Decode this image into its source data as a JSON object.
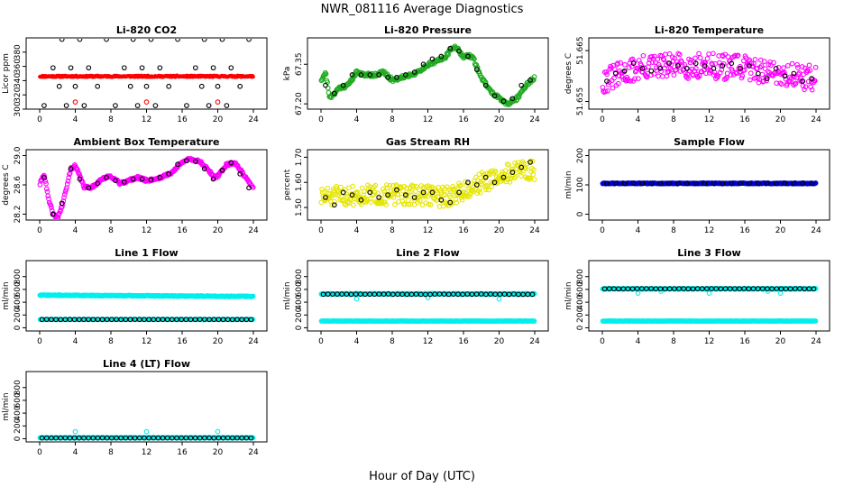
{
  "figure": {
    "title": "NWR_081116  Average Diagnostics",
    "xlabel": "Hour of Day (UTC)"
  },
  "chart_data": [
    {
      "id": "p1",
      "type": "scatter",
      "title": "Li-820 CO2",
      "ylabel": "Licor ppm",
      "xlim": [
        0,
        24
      ],
      "xticks": [
        0,
        4,
        8,
        12,
        16,
        20,
        24
      ],
      "ylim": [
        300,
        400
      ],
      "yticks": [
        300,
        320,
        340,
        360,
        380
      ],
      "ytick_rotate": true,
      "series": [
        {
          "name": "CO2 (continuous)",
          "color": "#ff0000",
          "marker": "dot",
          "gen": "linear",
          "from": 346,
          "to": 346,
          "n": 360,
          "noise": 1,
          "seed": 11
        },
        {
          "name": "Standards (reference)",
          "color": "#ff0000",
          "marker": "circle",
          "x": [
            4.0,
            12.0,
            20.0
          ],
          "y": [
            310,
            310,
            310
          ]
        },
        {
          "name": "Standards (averaged)",
          "color": "#000000",
          "marker": "circle",
          "x": [
            0.5,
            1.5,
            2.2,
            2.5,
            3.0,
            3.5,
            4.0,
            4.5,
            5.0,
            5.5,
            6.5,
            7.5,
            8.5,
            9.5,
            10.2,
            10.5,
            11.0,
            11.5,
            12.0,
            12.5,
            13.0,
            13.5,
            14.5,
            15.5,
            16.5,
            17.5,
            18.2,
            18.5,
            19.0,
            19.5,
            20.0,
            20.5,
            21.0,
            21.5,
            22.5,
            23.5
          ],
          "y": [
            305,
            358,
            332,
            398,
            305,
            358,
            332,
            398,
            305,
            358,
            332,
            398,
            305,
            358,
            332,
            398,
            305,
            358,
            332,
            398,
            305,
            358,
            332,
            398,
            305,
            358,
            332,
            398,
            305,
            358,
            332,
            398,
            305,
            358,
            332,
            398
          ]
        }
      ]
    },
    {
      "id": "p2",
      "type": "scatter",
      "title": "Li-820 Pressure",
      "ylabel": "kPa",
      "xlim": [
        0,
        24
      ],
      "xticks": [
        0,
        4,
        8,
        12,
        16,
        20,
        24
      ],
      "ylim": [
        67.18,
        67.45
      ],
      "yticks": [
        67.2,
        67.35
      ],
      "ytick_labels": [
        "67.20",
        "67.35"
      ],
      "ytick_rotate": true,
      "series": [
        {
          "name": "Pressure",
          "color": "#22aa22",
          "marker": "circle",
          "gen": "curve",
          "cx": [
            0,
            0.5,
            1,
            2,
            3,
            4,
            5,
            6,
            7,
            8,
            9,
            10,
            11,
            12,
            13,
            14,
            15,
            16,
            17,
            18,
            19,
            20,
            21,
            22,
            23,
            24
          ],
          "cy": [
            67.29,
            67.32,
            67.22,
            67.26,
            67.27,
            67.32,
            67.31,
            67.31,
            67.32,
            67.29,
            67.3,
            67.31,
            67.32,
            67.35,
            67.36,
            67.38,
            67.42,
            67.38,
            67.38,
            67.3,
            67.25,
            67.22,
            67.2,
            67.22,
            67.27,
            67.3
          ],
          "n": 320,
          "noise": 0.007,
          "seed": 21
        },
        {
          "name": "Pressure (hourly)",
          "color": "#000000",
          "marker": "circle",
          "x": [
            0.5,
            1.5,
            2.5,
            3.5,
            4.5,
            5.5,
            6.5,
            7.5,
            8.5,
            9.5,
            10.5,
            11.5,
            12.5,
            13.5,
            14.5,
            15.5,
            16.5,
            17.5,
            18.5,
            19.5,
            20.5,
            21.5,
            22.5,
            23.5
          ],
          "y": [
            67.27,
            67.24,
            67.27,
            67.31,
            67.31,
            67.31,
            67.31,
            67.3,
            67.3,
            67.31,
            67.32,
            67.35,
            67.37,
            67.38,
            67.41,
            67.4,
            67.38,
            67.33,
            67.27,
            67.23,
            67.21,
            67.22,
            67.27,
            67.29
          ]
        }
      ]
    },
    {
      "id": "p3",
      "type": "scatter",
      "title": "Li-820 Temperature",
      "ylabel": "degrees C",
      "xlim": [
        0,
        24
      ],
      "xticks": [
        0,
        4,
        8,
        12,
        16,
        20,
        24
      ],
      "ylim": [
        51.6535,
        51.6675
      ],
      "yticks": [
        51.655,
        51.665
      ],
      "ytick_labels": [
        "51.655",
        "51.665"
      ],
      "ytick_rotate": true,
      "series": [
        {
          "name": "Temperature",
          "color": "#ff00ff",
          "marker": "circle",
          "gen": "curve",
          "cx": [
            0,
            4,
            8,
            12,
            16,
            20,
            24
          ],
          "cy": [
            51.659,
            51.6615,
            51.662,
            51.662,
            51.6615,
            51.6605,
            51.6595
          ],
          "n": 300,
          "noise": 0.0025,
          "seed": 31
        },
        {
          "name": "Temperature (hourly)",
          "color": "#000000",
          "marker": "circle",
          "x": [
            0.5,
            1.5,
            2.5,
            3.5,
            4.5,
            5.5,
            6.5,
            7.5,
            8.5,
            9.5,
            10.5,
            11.5,
            12.5,
            13.5,
            14.5,
            15.5,
            16.5,
            17.5,
            18.5,
            19.5,
            20.5,
            21.5,
            22.5,
            23.5
          ],
          "y": [
            51.659,
            51.6605,
            51.661,
            51.6625,
            51.6615,
            51.661,
            51.6615,
            51.6625,
            51.662,
            51.6615,
            51.6625,
            51.662,
            51.6615,
            51.662,
            51.6625,
            51.6615,
            51.662,
            51.6605,
            51.6595,
            51.6615,
            51.66,
            51.6605,
            51.659,
            51.6595
          ]
        }
      ]
    },
    {
      "id": "p4",
      "type": "scatter",
      "title": "Ambient Box Temperature",
      "ylabel": "degrees C",
      "xlim": [
        0,
        24
      ],
      "xticks": [
        0,
        4,
        8,
        12,
        16,
        20,
        24
      ],
      "ylim": [
        28.12,
        29.08
      ],
      "yticks": [
        28.2,
        28.6,
        29.0
      ],
      "ytick_labels": [
        "28.2",
        "28.6",
        "29.0"
      ],
      "ytick_rotate": true,
      "series": [
        {
          "name": "Box temperature",
          "color": "#ff00ff",
          "marker": "circle",
          "gen": "curve",
          "cx": [
            0,
            0.5,
            1.0,
            1.5,
            2.0,
            2.5,
            3.0,
            3.5,
            4.0,
            4.5,
            5.0,
            5.5,
            6,
            7,
            8,
            9,
            10,
            11,
            12,
            13,
            14,
            15,
            16,
            17,
            18,
            19,
            19.5,
            20,
            21,
            22,
            23,
            24
          ],
          "cy": [
            28.6,
            28.75,
            28.4,
            28.2,
            28.15,
            28.3,
            28.55,
            28.82,
            28.86,
            28.72,
            28.57,
            28.56,
            28.58,
            28.68,
            28.72,
            28.62,
            28.66,
            28.7,
            28.66,
            28.68,
            28.72,
            28.78,
            28.92,
            28.95,
            28.92,
            28.8,
            28.7,
            28.72,
            28.88,
            28.9,
            28.72,
            28.55
          ],
          "n": 320,
          "noise": 0.018,
          "seed": 41
        },
        {
          "name": "Box temperature (hourly)",
          "color": "#000000",
          "marker": "circle",
          "x": [
            0.5,
            1.5,
            2.5,
            3.5,
            4.5,
            5.5,
            6.5,
            7.5,
            8.5,
            9.5,
            10.5,
            11.5,
            12.5,
            13.5,
            14.5,
            15.5,
            16.5,
            17.5,
            18.5,
            19.5,
            20.5,
            21.5,
            22.5,
            23.5
          ],
          "y": [
            28.7,
            28.2,
            28.35,
            28.82,
            28.68,
            28.56,
            28.62,
            28.7,
            28.66,
            28.64,
            28.68,
            28.68,
            28.67,
            28.7,
            28.75,
            28.88,
            28.93,
            28.92,
            28.82,
            28.68,
            28.8,
            28.9,
            28.75,
            28.56
          ]
        }
      ]
    },
    {
      "id": "p5",
      "type": "scatter",
      "title": "Gas Stream RH",
      "ylabel": "percent",
      "xlim": [
        0,
        24
      ],
      "xticks": [
        0,
        4,
        8,
        12,
        16,
        20,
        24
      ],
      "ylim": [
        1.45,
        1.73
      ],
      "yticks": [
        1.5,
        1.6,
        1.7
      ],
      "ytick_labels": [
        "1.50",
        "1.60",
        "1.70"
      ],
      "ytick_rotate": true,
      "series": [
        {
          "name": "RH",
          "color": "#ffff00",
          "stroke": "#e6e600",
          "marker": "circle",
          "gen": "curve",
          "cx": [
            0,
            4,
            8,
            12,
            14,
            16,
            18,
            20,
            22,
            24
          ],
          "cy": [
            1.54,
            1.55,
            1.55,
            1.55,
            1.54,
            1.57,
            1.6,
            1.62,
            1.65,
            1.65
          ],
          "n": 340,
          "noise": 0.04,
          "seed": 51
        },
        {
          "name": "RH (hourly)",
          "color": "#000000",
          "marker": "circle",
          "x": [
            0.5,
            1.5,
            2.5,
            3.5,
            4.5,
            5.5,
            6.5,
            7.5,
            8.5,
            9.5,
            10.5,
            11.5,
            12.5,
            13.5,
            14.5,
            15.5,
            16.5,
            17.5,
            18.5,
            19.5,
            20.5,
            21.5,
            22.5,
            23.5
          ],
          "y": [
            1.54,
            1.51,
            1.56,
            1.55,
            1.53,
            1.56,
            1.54,
            1.55,
            1.57,
            1.55,
            1.54,
            1.56,
            1.56,
            1.53,
            1.52,
            1.56,
            1.6,
            1.59,
            1.62,
            1.6,
            1.62,
            1.64,
            1.66,
            1.68
          ]
        }
      ]
    },
    {
      "id": "p6",
      "type": "scatter",
      "title": "Sample Flow",
      "ylabel": "ml/min",
      "xlim": [
        0,
        24
      ],
      "xticks": [
        0,
        4,
        8,
        12,
        16,
        20,
        24
      ],
      "ylim": [
        -20,
        220
      ],
      "yticks": [
        0,
        100,
        200
      ],
      "ytick_rotate": true,
      "series": [
        {
          "name": "Sample flow",
          "color": "#0000cc",
          "marker": "circle",
          "gen": "linear",
          "from": 105,
          "to": 105,
          "n": 300,
          "noise": 1.5,
          "seed": 61
        },
        {
          "name": "Sample flow (hourly)",
          "color": "#000000",
          "marker": "circle",
          "gen": "linear",
          "from": 105,
          "to": 105,
          "n": 24,
          "noise": 0.5,
          "seed": 62
        }
      ]
    },
    {
      "id": "p7",
      "type": "scatter",
      "title": "Line 1 Flow",
      "ylabel": "ml/min",
      "xlim": [
        0,
        24
      ],
      "xticks": [
        0,
        4,
        8,
        12,
        16,
        20,
        24
      ],
      "ylim": [
        -50,
        1050
      ],
      "yticks": [
        0,
        200,
        400,
        600,
        800
      ],
      "ytick_rotate": true,
      "series": [
        {
          "name": "Line 1 flow (inactive)",
          "color": "#00eeee",
          "marker": "circle",
          "gen": "linear",
          "from": 510,
          "to": 490,
          "n": 320,
          "noise": 6,
          "seed": 71
        },
        {
          "name": "Line 1 flow (sampling)",
          "color": "#00eeee",
          "marker": "circle",
          "gen": "linear",
          "from": 130,
          "to": 130,
          "n": 200,
          "noise": 2,
          "seed": 72
        },
        {
          "name": "Line 1 flow (hourly)",
          "color": "#000000",
          "marker": "circle",
          "gen": "linear",
          "from": 130,
          "to": 130,
          "n": 46,
          "noise": 1,
          "seed": 73
        }
      ]
    },
    {
      "id": "p8",
      "type": "scatter",
      "title": "Line 2 Flow",
      "ylabel": "ml/min",
      "xlim": [
        0,
        24
      ],
      "xticks": [
        0,
        4,
        8,
        12,
        16,
        20,
        24
      ],
      "ylim": [
        -50,
        1050
      ],
      "yticks": [
        0,
        200,
        400,
        600,
        800
      ],
      "ytick_rotate": true,
      "series": [
        {
          "name": "Line 2 flow (sampling)",
          "color": "#00eeee",
          "marker": "circle",
          "gen": "linear",
          "from": 530,
          "to": 530,
          "n": 320,
          "noise": 6,
          "seed": 81
        },
        {
          "name": "Line 2 flow (inactive)",
          "color": "#00eeee",
          "marker": "circle",
          "gen": "linear",
          "from": 105,
          "to": 105,
          "n": 220,
          "noise": 2,
          "seed": 82
        },
        {
          "name": "Line 2 dips",
          "color": "#00eeee",
          "marker": "circle",
          "x": [
            4.0,
            12.0,
            20.0
          ],
          "y": [
            450,
            470,
            450
          ]
        },
        {
          "name": "Line 2 flow (hourly)",
          "color": "#000000",
          "marker": "circle",
          "gen": "linear",
          "from": 525,
          "to": 525,
          "n": 46,
          "noise": 3,
          "seed": 83
        }
      ]
    },
    {
      "id": "p9",
      "type": "scatter",
      "title": "Line 3 Flow",
      "ylabel": "ml/min",
      "xlim": [
        0,
        24
      ],
      "xticks": [
        0,
        4,
        8,
        12,
        16,
        20,
        24
      ],
      "ylim": [
        -50,
        1050
      ],
      "yticks": [
        0,
        200,
        400,
        600,
        800
      ],
      "ytick_rotate": true,
      "series": [
        {
          "name": "Line 3 flow (sampling)",
          "color": "#00eeee",
          "marker": "circle",
          "gen": "linear",
          "from": 610,
          "to": 610,
          "n": 320,
          "noise": 5,
          "seed": 91
        },
        {
          "name": "Line 3 flow (inactive)",
          "color": "#00eeee",
          "marker": "circle",
          "gen": "linear",
          "from": 105,
          "to": 105,
          "n": 220,
          "noise": 2,
          "seed": 92
        },
        {
          "name": "Line 3 dips",
          "color": "#00eeee",
          "marker": "circle",
          "x": [
            4.0,
            6.6,
            12.0,
            18.6,
            20.0
          ],
          "y": [
            540,
            570,
            540,
            570,
            540
          ]
        },
        {
          "name": "Line 3 flow (hourly)",
          "color": "#000000",
          "marker": "circle",
          "gen": "linear",
          "from": 610,
          "to": 610,
          "n": 46,
          "noise": 2,
          "seed": 93
        }
      ]
    },
    {
      "id": "p10",
      "type": "scatter",
      "title": "Line 4 (LT) Flow",
      "ylabel": "ml/min",
      "xlim": [
        0,
        24
      ],
      "xticks": [
        0,
        4,
        8,
        12,
        16,
        20,
        24
      ],
      "ylim": [
        -50,
        1050
      ],
      "yticks": [
        0,
        200,
        400,
        600,
        800
      ],
      "ytick_rotate": true,
      "series": [
        {
          "name": "Line 4 flow",
          "color": "#00eeee",
          "marker": "circle",
          "gen": "linear",
          "from": 15,
          "to": 15,
          "n": 300,
          "noise": 2,
          "seed": 101
        },
        {
          "name": "Line 4 spikes",
          "color": "#00eeee",
          "marker": "circle",
          "x": [
            4.0,
            12.0,
            20.0
          ],
          "y": [
            110,
            110,
            110
          ]
        },
        {
          "name": "Line 4 flow (hourly)",
          "color": "#000000",
          "marker": "circle",
          "gen": "linear",
          "from": 12,
          "to": 12,
          "n": 46,
          "noise": 1,
          "seed": 102
        }
      ]
    }
  ]
}
